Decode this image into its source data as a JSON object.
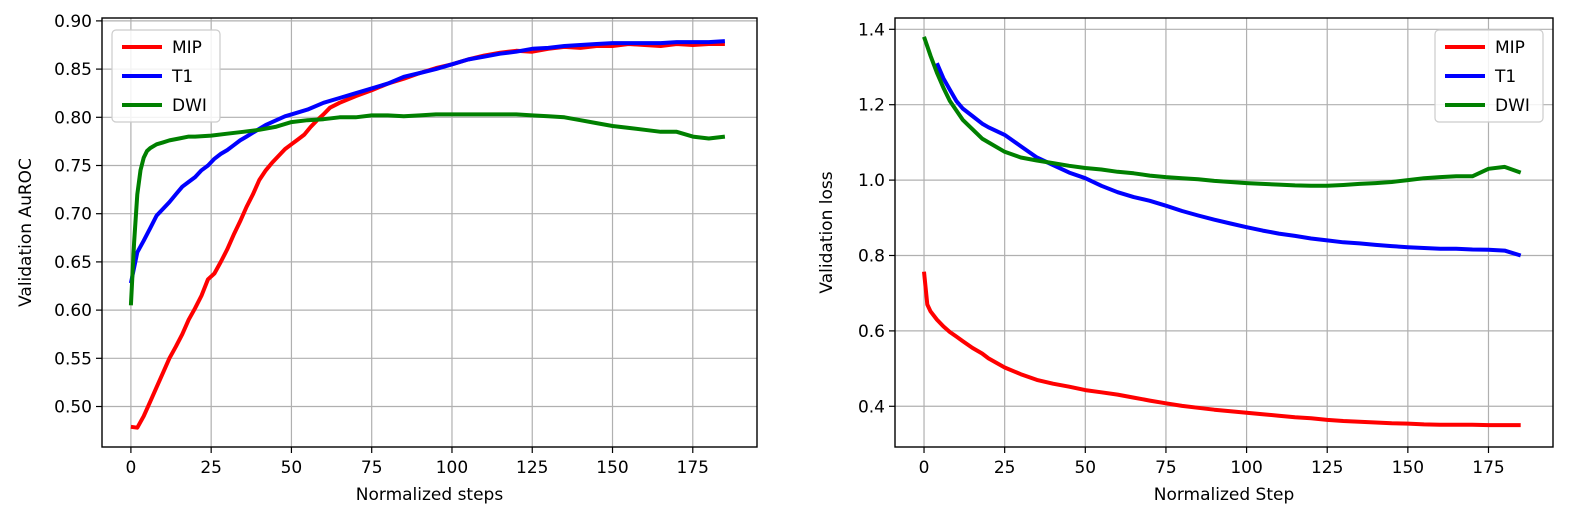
{
  "chart_data": [
    {
      "type": "line",
      "title": "",
      "xlabel": "Normalized steps",
      "ylabel": "Validation AuROC",
      "xlim": [
        -9,
        195
      ],
      "ylim": [
        0.458,
        0.903
      ],
      "xticks": [
        0,
        25,
        50,
        75,
        100,
        125,
        150,
        175
      ],
      "yticks": [
        0.5,
        0.55,
        0.6,
        0.65,
        0.7,
        0.75,
        0.8,
        0.85,
        0.9
      ],
      "ytick_labels": [
        "0.50",
        "0.55",
        "0.60",
        "0.65",
        "0.70",
        "0.75",
        "0.80",
        "0.85",
        "0.90"
      ],
      "grid": true,
      "legend_position": "upper-left",
      "series": [
        {
          "name": "MIP",
          "color": "#ff0000",
          "x": [
            0,
            2,
            4,
            6,
            8,
            10,
            12,
            14,
            16,
            18,
            20,
            22,
            24,
            26,
            28,
            30,
            32,
            34,
            36,
            38,
            40,
            42,
            44,
            46,
            48,
            50,
            52,
            54,
            56,
            58,
            60,
            62,
            65,
            70,
            75,
            80,
            85,
            90,
            95,
            100,
            105,
            110,
            115,
            120,
            125,
            130,
            135,
            140,
            145,
            150,
            155,
            160,
            165,
            170,
            175,
            180,
            185
          ],
          "y": [
            0.479,
            0.478,
            0.49,
            0.505,
            0.52,
            0.535,
            0.55,
            0.562,
            0.575,
            0.59,
            0.602,
            0.615,
            0.632,
            0.638,
            0.65,
            0.663,
            0.678,
            0.692,
            0.707,
            0.72,
            0.735,
            0.745,
            0.753,
            0.76,
            0.767,
            0.772,
            0.777,
            0.782,
            0.79,
            0.797,
            0.803,
            0.81,
            0.815,
            0.822,
            0.828,
            0.835,
            0.84,
            0.846,
            0.851,
            0.855,
            0.86,
            0.864,
            0.867,
            0.869,
            0.868,
            0.871,
            0.873,
            0.872,
            0.874,
            0.874,
            0.876,
            0.875,
            0.874,
            0.876,
            0.875,
            0.876,
            0.876
          ]
        },
        {
          "name": "T1",
          "color": "#0000ff",
          "x": [
            0,
            2,
            4,
            6,
            8,
            10,
            12,
            14,
            16,
            18,
            20,
            22,
            24,
            26,
            28,
            30,
            32,
            34,
            36,
            38,
            40,
            42,
            44,
            46,
            48,
            50,
            55,
            60,
            65,
            70,
            75,
            80,
            85,
            90,
            95,
            100,
            105,
            110,
            115,
            120,
            125,
            130,
            135,
            140,
            145,
            150,
            155,
            160,
            165,
            170,
            175,
            180,
            185
          ],
          "y": [
            0.628,
            0.66,
            0.672,
            0.685,
            0.698,
            0.705,
            0.712,
            0.72,
            0.728,
            0.733,
            0.738,
            0.745,
            0.75,
            0.757,
            0.762,
            0.766,
            0.771,
            0.776,
            0.78,
            0.784,
            0.788,
            0.792,
            0.795,
            0.798,
            0.801,
            0.803,
            0.808,
            0.815,
            0.82,
            0.825,
            0.83,
            0.835,
            0.842,
            0.846,
            0.85,
            0.855,
            0.86,
            0.863,
            0.866,
            0.868,
            0.871,
            0.872,
            0.874,
            0.875,
            0.876,
            0.877,
            0.877,
            0.877,
            0.877,
            0.878,
            0.878,
            0.878,
            0.879
          ]
        },
        {
          "name": "DWI",
          "color": "#008000",
          "x": [
            0,
            1,
            2,
            3,
            4,
            5,
            6,
            8,
            10,
            12,
            15,
            18,
            20,
            25,
            30,
            35,
            40,
            45,
            50,
            55,
            60,
            65,
            70,
            75,
            80,
            85,
            90,
            95,
            100,
            105,
            110,
            115,
            120,
            125,
            130,
            135,
            140,
            145,
            150,
            155,
            160,
            165,
            170,
            175,
            180,
            185
          ],
          "y": [
            0.605,
            0.67,
            0.72,
            0.745,
            0.758,
            0.765,
            0.768,
            0.772,
            0.774,
            0.776,
            0.778,
            0.78,
            0.78,
            0.781,
            0.783,
            0.785,
            0.787,
            0.79,
            0.795,
            0.797,
            0.798,
            0.8,
            0.8,
            0.802,
            0.802,
            0.801,
            0.802,
            0.803,
            0.803,
            0.803,
            0.803,
            0.803,
            0.803,
            0.802,
            0.801,
            0.8,
            0.797,
            0.794,
            0.791,
            0.789,
            0.787,
            0.785,
            0.785,
            0.78,
            0.778,
            0.78
          ]
        }
      ]
    },
    {
      "type": "line",
      "title": "",
      "xlabel": "Normalized Step",
      "ylabel": "Validation loss",
      "xlim": [
        -9,
        195
      ],
      "ylim": [
        0.292,
        1.43
      ],
      "xticks": [
        0,
        25,
        50,
        75,
        100,
        125,
        150,
        175
      ],
      "yticks": [
        0.4,
        0.6,
        0.8,
        1.0,
        1.2,
        1.4
      ],
      "ytick_labels": [
        "0.4",
        "0.6",
        "0.8",
        "1.0",
        "1.2",
        "1.4"
      ],
      "grid": true,
      "legend_position": "upper-right",
      "series": [
        {
          "name": "MIP",
          "color": "#ff0000",
          "x": [
            0,
            1,
            2,
            4,
            6,
            8,
            10,
            12,
            15,
            18,
            20,
            25,
            30,
            35,
            40,
            45,
            50,
            55,
            60,
            65,
            70,
            75,
            80,
            85,
            90,
            95,
            100,
            105,
            110,
            115,
            120,
            125,
            130,
            135,
            140,
            145,
            150,
            155,
            160,
            165,
            170,
            175,
            180,
            185
          ],
          "y": [
            0.757,
            0.67,
            0.652,
            0.63,
            0.612,
            0.597,
            0.585,
            0.573,
            0.555,
            0.54,
            0.527,
            0.503,
            0.485,
            0.47,
            0.46,
            0.452,
            0.443,
            0.437,
            0.431,
            0.423,
            0.415,
            0.408,
            0.401,
            0.396,
            0.391,
            0.387,
            0.383,
            0.379,
            0.375,
            0.371,
            0.368,
            0.364,
            0.361,
            0.359,
            0.357,
            0.355,
            0.354,
            0.352,
            0.351,
            0.351,
            0.351,
            0.35,
            0.35,
            0.35
          ]
        },
        {
          "name": "T1",
          "color": "#0000ff",
          "x": [
            4,
            6,
            8,
            10,
            12,
            15,
            18,
            20,
            25,
            30,
            35,
            40,
            45,
            50,
            55,
            60,
            65,
            70,
            75,
            80,
            85,
            90,
            95,
            100,
            105,
            110,
            115,
            120,
            125,
            130,
            135,
            140,
            145,
            150,
            155,
            160,
            165,
            170,
            175,
            180,
            185
          ],
          "y": [
            1.31,
            1.27,
            1.24,
            1.21,
            1.19,
            1.17,
            1.15,
            1.14,
            1.12,
            1.09,
            1.06,
            1.04,
            1.02,
            1.005,
            0.985,
            0.968,
            0.955,
            0.945,
            0.932,
            0.918,
            0.906,
            0.895,
            0.885,
            0.875,
            0.866,
            0.858,
            0.852,
            0.845,
            0.84,
            0.835,
            0.832,
            0.828,
            0.825,
            0.822,
            0.82,
            0.818,
            0.818,
            0.816,
            0.815,
            0.813,
            0.8
          ]
        },
        {
          "name": "DWI",
          "color": "#008000",
          "x": [
            0,
            1,
            2,
            4,
            6,
            8,
            10,
            12,
            15,
            18,
            20,
            25,
            30,
            35,
            40,
            45,
            50,
            55,
            60,
            65,
            70,
            75,
            80,
            85,
            90,
            95,
            100,
            105,
            110,
            115,
            120,
            125,
            130,
            135,
            140,
            145,
            150,
            155,
            160,
            165,
            170,
            175,
            180,
            185
          ],
          "y": [
            1.38,
            1.355,
            1.33,
            1.285,
            1.245,
            1.21,
            1.185,
            1.16,
            1.135,
            1.11,
            1.1,
            1.075,
            1.06,
            1.052,
            1.045,
            1.038,
            1.032,
            1.028,
            1.022,
            1.018,
            1.012,
            1.008,
            1.005,
            1.002,
            0.998,
            0.995,
            0.992,
            0.99,
            0.988,
            0.986,
            0.985,
            0.985,
            0.987,
            0.99,
            0.992,
            0.995,
            1.0,
            1.005,
            1.008,
            1.01,
            1.01,
            1.03,
            1.035,
            1.02
          ]
        }
      ]
    }
  ]
}
